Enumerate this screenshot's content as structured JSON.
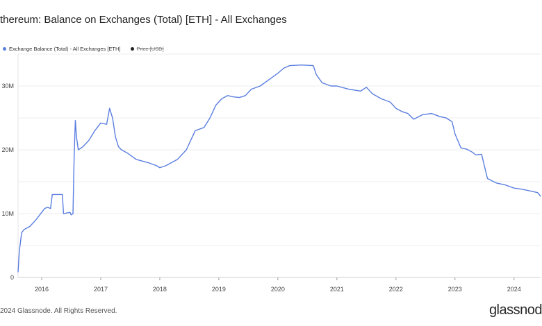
{
  "title": "thereum: Balance on Exchanges (Total) [ETH] - All Exchanges",
  "footer": "2024 Glassnode. All Rights Reserved.",
  "brand": "glassnod",
  "legend": [
    {
      "label": "Exchange Balance (Total) - All Exchanges [ETH]",
      "color": "#5a7ee0",
      "hidden": false
    },
    {
      "label": "Price [USD]",
      "color": "#222222",
      "hidden": true
    }
  ],
  "chart_data": {
    "type": "line",
    "title": "thereum: Balance on Exchanges (Total) [ETH] - All Exchanges",
    "xlabel": "",
    "ylabel": "",
    "ylim": [
      0,
      35000000
    ],
    "xlim": [
      2015.6,
      2024.45
    ],
    "grid": true,
    "y_ticks": [
      {
        "value": 0,
        "label": "0"
      },
      {
        "value": 10000000,
        "label": "10M"
      },
      {
        "value": 20000000,
        "label": "20M"
      },
      {
        "value": 30000000,
        "label": "30M"
      }
    ],
    "x_ticks": [
      {
        "value": 2016,
        "label": "2016"
      },
      {
        "value": 2017,
        "label": "2017"
      },
      {
        "value": 2018,
        "label": "2018"
      },
      {
        "value": 2019,
        "label": "2019"
      },
      {
        "value": 2020,
        "label": "2020"
      },
      {
        "value": 2021,
        "label": "2021"
      },
      {
        "value": 2022,
        "label": "2022"
      },
      {
        "value": 2023,
        "label": "2023"
      },
      {
        "value": 2024,
        "label": "2024"
      }
    ],
    "series": [
      {
        "name": "Exchange Balance (Total) - All Exchanges [ETH]",
        "color": "#5a7ee0",
        "x": [
          2015.6,
          2015.62,
          2015.66,
          2015.7,
          2015.8,
          2015.9,
          2016.0,
          2016.05,
          2016.1,
          2016.15,
          2016.18,
          2016.35,
          2016.37,
          2016.48,
          2016.5,
          2016.53,
          2016.55,
          2016.57,
          2016.59,
          2016.62,
          2016.7,
          2016.8,
          2016.9,
          2017.0,
          2017.1,
          2017.15,
          2017.2,
          2017.25,
          2017.3,
          2017.35,
          2017.45,
          2017.6,
          2017.8,
          2017.95,
          2018.0,
          2018.1,
          2018.2,
          2018.3,
          2018.45,
          2018.6,
          2018.75,
          2018.85,
          2018.95,
          2019.05,
          2019.15,
          2019.25,
          2019.35,
          2019.45,
          2019.55,
          2019.7,
          2019.85,
          2020.0,
          2020.1,
          2020.2,
          2020.4,
          2020.6,
          2020.65,
          2020.75,
          2020.9,
          2021.0,
          2021.2,
          2021.4,
          2021.5,
          2021.6,
          2021.75,
          2021.9,
          2022.0,
          2022.1,
          2022.2,
          2022.3,
          2022.45,
          2022.6,
          2022.75,
          2022.85,
          2022.95,
          2023.0,
          2023.1,
          2023.2,
          2023.3,
          2023.35,
          2023.45,
          2023.55,
          2023.7,
          2023.85,
          2024.0,
          2024.15,
          2024.3,
          2024.4,
          2024.45
        ],
        "values": [
          800000,
          4000000,
          7000000,
          7500000,
          8000000,
          9000000,
          10200000,
          10800000,
          11000000,
          10800000,
          13000000,
          13000000,
          10000000,
          10200000,
          9800000,
          10000000,
          19000000,
          24600000,
          22000000,
          20000000,
          20500000,
          21500000,
          23000000,
          24200000,
          24000000,
          26500000,
          25000000,
          22000000,
          20500000,
          20000000,
          19500000,
          18500000,
          18000000,
          17500000,
          17200000,
          17500000,
          18000000,
          18500000,
          20000000,
          23000000,
          23500000,
          25000000,
          27000000,
          28000000,
          28500000,
          28300000,
          28200000,
          28500000,
          29500000,
          30000000,
          31000000,
          32000000,
          32800000,
          33200000,
          33300000,
          33200000,
          31800000,
          30500000,
          30000000,
          30000000,
          29500000,
          29200000,
          29800000,
          28800000,
          28000000,
          27500000,
          26500000,
          26000000,
          25700000,
          24800000,
          25500000,
          25700000,
          25200000,
          25000000,
          24400000,
          22500000,
          20300000,
          20100000,
          19600000,
          19200000,
          19300000,
          15500000,
          14800000,
          14500000,
          14000000,
          13800000,
          13500000,
          13300000,
          12700000
        ]
      }
    ]
  }
}
